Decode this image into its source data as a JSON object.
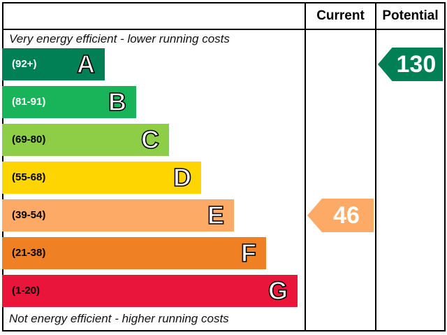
{
  "header": {
    "current_label": "Current",
    "potential_label": "Potential"
  },
  "notes": {
    "top": "Very energy efficient - lower running costs",
    "bottom": "Not energy efficient - higher running costs"
  },
  "chart_data": {
    "type": "bar",
    "categories": [
      "A",
      "B",
      "C",
      "D",
      "E",
      "F",
      "G"
    ],
    "ranges": [
      "(92+)",
      "(81-91)",
      "(69-80)",
      "(55-68)",
      "(39-54)",
      "(21-38)",
      "(1-20)"
    ],
    "band_colors": [
      "#008054",
      "#19b459",
      "#8dce46",
      "#ffd500",
      "#fcaa65",
      "#ef8023",
      "#e9153b"
    ],
    "range_text_colors": [
      "#ffffff",
      "#ffffff",
      "#000000",
      "#000000",
      "#000000",
      "#000000",
      "#000000"
    ],
    "current": {
      "value": "46",
      "band": "E",
      "color": "#fcaa65"
    },
    "potential": {
      "value": "130",
      "band": "A",
      "color": "#008054"
    }
  }
}
